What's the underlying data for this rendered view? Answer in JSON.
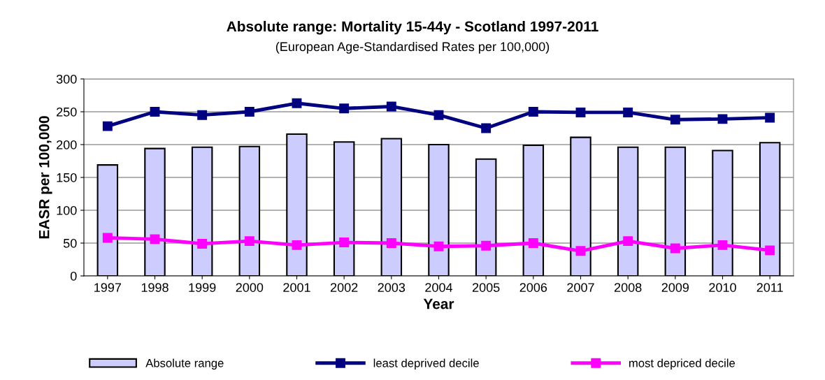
{
  "chart_data": {
    "type": "bar",
    "title": "Absolute range: Mortality 15-44y - Scotland 1997-2011",
    "subtitle": "(European Age-Standardised Rates per 100,000)",
    "xlabel": "Year",
    "ylabel": "EASR per 100,000",
    "categories": [
      "1997",
      "1998",
      "1999",
      "2000",
      "2001",
      "2002",
      "2003",
      "2004",
      "2005",
      "2006",
      "2007",
      "2008",
      "2009",
      "2010",
      "2011"
    ],
    "series": [
      {
        "name": "Absolute range",
        "color": "#ccccff",
        "values": [
          169,
          194,
          196,
          197,
          216,
          204,
          209,
          200,
          178,
          199,
          211,
          196,
          196,
          191,
          203
        ]
      },
      {
        "name": "least deprived decile",
        "type": "line",
        "color": "#000080",
        "values": [
          228,
          250,
          245,
          250,
          263,
          255,
          258,
          245,
          225,
          250,
          249,
          249,
          238,
          239,
          241
        ]
      },
      {
        "name": "most depriced decile",
        "type": "line",
        "color": "#ff00ff",
        "values": [
          58,
          56,
          49,
          53,
          47,
          51,
          50,
          45,
          46,
          50,
          38,
          53,
          42,
          47,
          39
        ]
      }
    ],
    "ylim": [
      0,
      300
    ],
    "yticks": [
      0,
      50,
      100,
      150,
      200,
      250,
      300
    ],
    "grid": "y",
    "legend": "bottom",
    "marker": "square",
    "line_style": "solid"
  }
}
